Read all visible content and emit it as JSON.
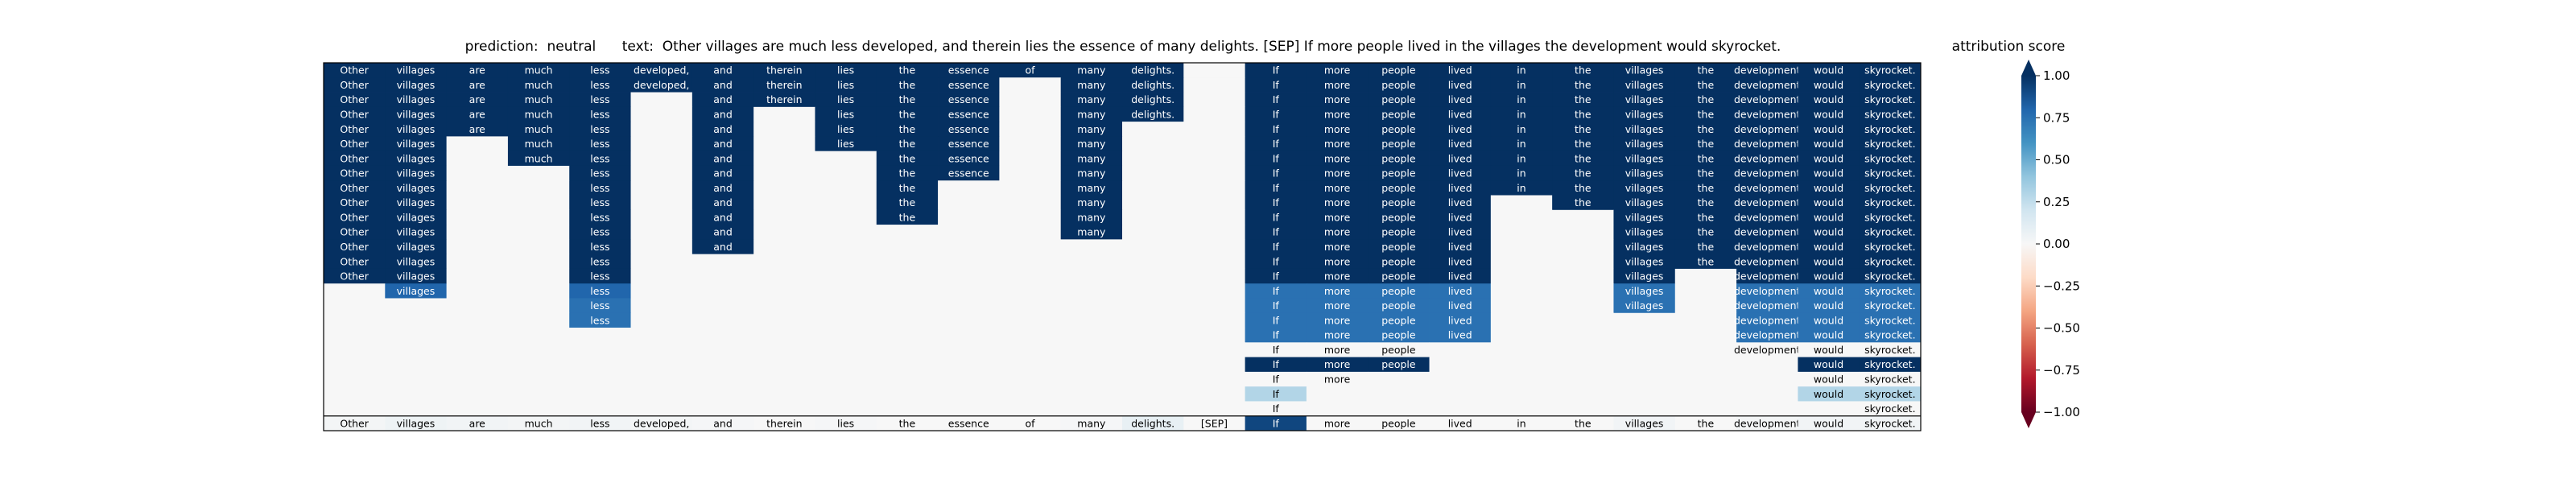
{
  "header": {
    "title": "prediction:  neutral      text:  Other villages are much less developed, and therein lies the essence of many delights. [SEP] If more people lived in the villages the development would skyrocket.",
    "colorbar_label": "attribution score"
  },
  "chart_data": {
    "type": "heatmap",
    "colorbar": {
      "label": "attribution score",
      "ticks": [
        "1.00",
        "0.75",
        "0.50",
        "0.25",
        "0.00",
        "−0.25",
        "−0.50",
        "−0.75",
        "−1.00"
      ],
      "tick_values": [
        1.0,
        0.75,
        0.5,
        0.25,
        0.0,
        -0.25,
        -0.5,
        -0.75,
        -1.0
      ],
      "range": [
        -1,
        1
      ],
      "colors": [
        "#67001f",
        "#b2182b",
        "#d6604d",
        "#f4a582",
        "#fddbc7",
        "#f7f7f7",
        "#d1e5f0",
        "#92c5de",
        "#4393c3",
        "#2166ac",
        "#053061"
      ]
    },
    "tokens": [
      "Other",
      "villages",
      "are",
      "much",
      "less",
      "developed,",
      "and",
      "therein",
      "lies",
      "the",
      "essence",
      "of",
      "many",
      "delights.",
      "[SEP]",
      "If",
      "more",
      "people",
      "lived",
      "in",
      "the",
      "villages",
      "the",
      "development",
      "would",
      "skyrocket."
    ],
    "bottom_row_scores": [
      0.02,
      0.05,
      0.03,
      0.02,
      0.03,
      0.02,
      0.01,
      0.0,
      0.01,
      0.0,
      0.0,
      0.0,
      0.01,
      0.08,
      0.0,
      0.92,
      0.0,
      0.0,
      0.0,
      0.0,
      0.0,
      0.03,
      0.0,
      0.02,
      0.03,
      0.03
    ],
    "layers": [
      {
        "row": 1,
        "kept": [
          0,
          1,
          2,
          3,
          4,
          5,
          6,
          7,
          8,
          9,
          10,
          11,
          12,
          13,
          15,
          16,
          17,
          18,
          19,
          20,
          21,
          22,
          23,
          24,
          25
        ]
      },
      {
        "row": 2,
        "kept": [
          0,
          1,
          2,
          3,
          4,
          5,
          6,
          7,
          8,
          9,
          10,
          12,
          13,
          15,
          16,
          17,
          18,
          19,
          20,
          21,
          22,
          23,
          24,
          25
        ]
      },
      {
        "row": 3,
        "kept": [
          0,
          1,
          2,
          3,
          4,
          6,
          7,
          8,
          9,
          10,
          12,
          13,
          15,
          16,
          17,
          18,
          19,
          20,
          21,
          22,
          23,
          24,
          25
        ]
      },
      {
        "row": 4,
        "kept": [
          0,
          1,
          2,
          3,
          4,
          6,
          8,
          9,
          10,
          12,
          13,
          15,
          16,
          17,
          18,
          19,
          20,
          21,
          22,
          23,
          24,
          25
        ]
      },
      {
        "row": 5,
        "kept": [
          0,
          1,
          2,
          3,
          4,
          6,
          8,
          9,
          10,
          12,
          15,
          16,
          17,
          18,
          19,
          20,
          21,
          22,
          23,
          24,
          25
        ]
      },
      {
        "row": 6,
        "kept": [
          0,
          1,
          3,
          4,
          6,
          8,
          9,
          10,
          12,
          15,
          16,
          17,
          18,
          19,
          20,
          21,
          22,
          23,
          24,
          25
        ]
      },
      {
        "row": 7,
        "kept": [
          0,
          1,
          3,
          4,
          6,
          9,
          10,
          12,
          15,
          16,
          17,
          18,
          19,
          20,
          21,
          22,
          23,
          24,
          25
        ]
      },
      {
        "row": 8,
        "kept": [
          0,
          1,
          4,
          6,
          9,
          10,
          12,
          15,
          16,
          17,
          18,
          19,
          20,
          21,
          22,
          23,
          24,
          25
        ]
      },
      {
        "row": 9,
        "kept": [
          0,
          1,
          4,
          6,
          9,
          12,
          15,
          16,
          17,
          18,
          19,
          20,
          21,
          22,
          23,
          24,
          25
        ]
      },
      {
        "row": 10,
        "kept": [
          0,
          1,
          4,
          6,
          9,
          12,
          15,
          16,
          17,
          18,
          20,
          21,
          22,
          23,
          24,
          25
        ]
      },
      {
        "row": 11,
        "kept": [
          0,
          1,
          4,
          6,
          9,
          12,
          15,
          16,
          17,
          18,
          21,
          22,
          23,
          24,
          25
        ]
      },
      {
        "row": 12,
        "kept": [
          0,
          1,
          4,
          6,
          12,
          15,
          16,
          17,
          18,
          21,
          22,
          23,
          24,
          25
        ]
      },
      {
        "row": 13,
        "kept": [
          0,
          1,
          4,
          6,
          15,
          16,
          17,
          18,
          21,
          22,
          23,
          24,
          25
        ]
      },
      {
        "row": 14,
        "kept": [
          0,
          1,
          4,
          15,
          16,
          17,
          18,
          21,
          22,
          23,
          24,
          25
        ]
      },
      {
        "row": 15,
        "kept": [
          0,
          1,
          4,
          15,
          16,
          17,
          18,
          21,
          23,
          24,
          25
        ]
      },
      {
        "row": 16,
        "kept": [
          1,
          4,
          15,
          16,
          17,
          18,
          21,
          23,
          24,
          25
        ]
      },
      {
        "row": 17,
        "kept": [
          4,
          15,
          16,
          17,
          18,
          21,
          23,
          24,
          25
        ]
      },
      {
        "row": 18,
        "kept": [
          4,
          15,
          16,
          17,
          18,
          23,
          24,
          25
        ]
      },
      {
        "row": 19,
        "kept": [
          15,
          16,
          17,
          18,
          23,
          24,
          25
        ]
      },
      {
        "row": 20,
        "kept": [
          15,
          16,
          17,
          23,
          24,
          25
        ]
      },
      {
        "row": 21,
        "kept": [
          15,
          16,
          17,
          24,
          25
        ]
      },
      {
        "row": 22,
        "kept": [
          15,
          16,
          24,
          25
        ]
      },
      {
        "row": 23,
        "kept": [
          15,
          24,
          25
        ]
      },
      {
        "row": 24,
        "kept": [
          15,
          25
        ]
      }
    ],
    "kept_cell_scores": {
      "default": 1.0,
      "row16": {
        "1": 0.8,
        "4": 0.8,
        "15": 0.75,
        "16": 0.75,
        "17": 0.75,
        "18": 0.75,
        "21": 0.75,
        "23": 0.75,
        "24": 0.75,
        "25": 0.75
      },
      "row17": {
        "4": 0.75,
        "15": 0.75,
        "16": 0.75,
        "17": 0.75,
        "18": 0.75,
        "21": 0.75,
        "23": 0.75,
        "24": 0.75,
        "25": 0.75
      },
      "row18": {
        "4": 0.75,
        "15": 0.75,
        "16": 0.75,
        "17": 0.75,
        "18": 0.75,
        "23": 0.75,
        "24": 0.75,
        "25": 0.75
      },
      "row19": {
        "15": 0.75,
        "16": 0.75,
        "17": 0.75,
        "18": 0.75,
        "23": 0.75,
        "24": 0.75,
        "25": 0.75
      },
      "row20": {
        "15": 0.0,
        "16": 0.0,
        "17": 0.0,
        "23": 0.0,
        "24": 0.0,
        "25": 0.0
      },
      "row21": {
        "15": 1.0,
        "16": 1.0,
        "17": 1.0,
        "24": 1.0,
        "25": 1.0
      },
      "row22": {
        "15": 0.0,
        "16": 0.0,
        "24": 0.0,
        "25": 0.0
      },
      "row23": {
        "15": 0.3,
        "24": 0.3,
        "25": 0.3
      },
      "row24": {
        "15": 0.0,
        "25": 0.0
      }
    },
    "removed_cell_score": 0.0
  }
}
